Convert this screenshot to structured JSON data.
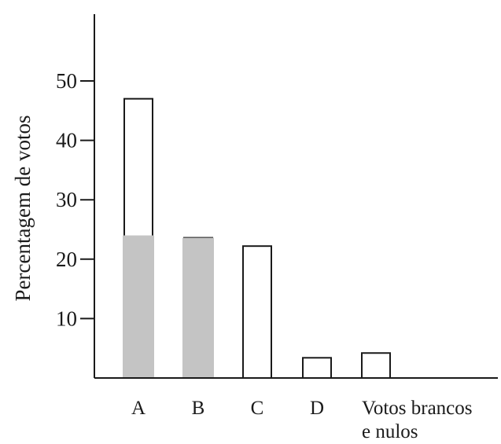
{
  "chart_data": {
    "type": "bar",
    "ylabel": "Percentagem de votos",
    "xlabel": "",
    "ylim": [
      0,
      50
    ],
    "yticks": [
      10,
      20,
      30,
      40,
      50
    ],
    "categories": [
      "A",
      "B",
      "C",
      "D",
      "Votos brancos e nulos"
    ],
    "category_label_lines": [
      [
        "A"
      ],
      [
        "B"
      ],
      [
        "C"
      ],
      [
        "D"
      ],
      [
        "Votos brancos",
        "e nulos"
      ]
    ],
    "series": [
      {
        "values": [
          47,
          23.6,
          22.2,
          3.4,
          4.2
        ],
        "fill": "#ffffff",
        "stroke": "#1a1a1a"
      },
      {
        "values": [
          24,
          23.6,
          null,
          null,
          null
        ],
        "fill": "#c4c4c4",
        "stroke": "none"
      }
    ],
    "legend": "none",
    "grid": false
  }
}
